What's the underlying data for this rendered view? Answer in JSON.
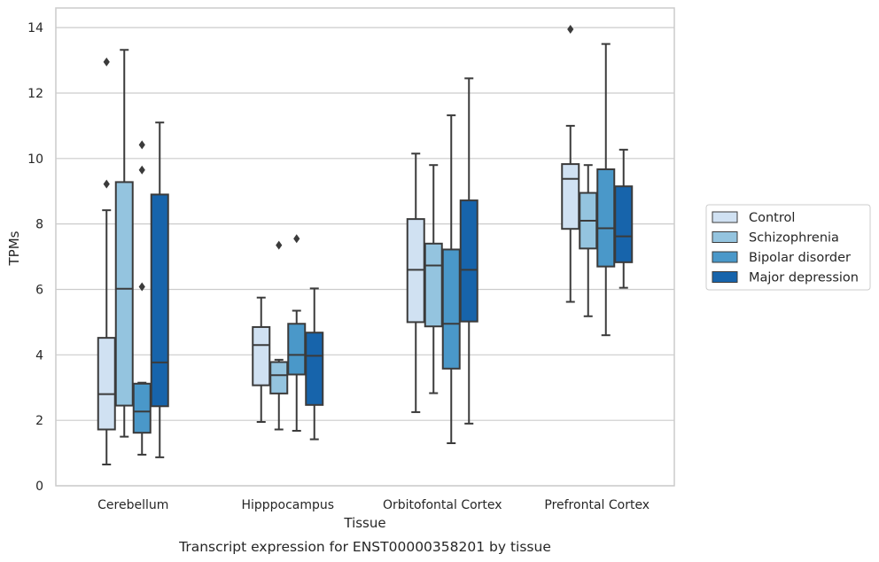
{
  "chart_data": {
    "type": "box",
    "title": "Transcript expression for ENST00000358201 by tissue",
    "xlabel": "Tissue",
    "ylabel": "TPMs",
    "ylim": [
      0,
      14.6
    ],
    "yticks": [
      0,
      2,
      4,
      6,
      8,
      10,
      12,
      14
    ],
    "ytick_labels": [
      "0",
      "2",
      "4",
      "6",
      "8",
      "10",
      "12",
      "14"
    ],
    "grid": "horizontal",
    "legend_position": "right",
    "categories": [
      "Cerebellum",
      "Hipppocampus",
      "Orbitofontal Cortex",
      "Prefrontal Cortex"
    ],
    "series": [
      {
        "name": "Control",
        "color": "#d0e1f2",
        "boxes": [
          {
            "whislo": 0.65,
            "q1": 1.72,
            "med": 2.8,
            "q3": 4.52,
            "whishi": 8.42,
            "fliers": [
              9.22,
              12.95
            ]
          },
          {
            "whislo": 1.95,
            "q1": 3.07,
            "med": 4.3,
            "q3": 4.85,
            "whishi": 5.75,
            "fliers": []
          },
          {
            "whislo": 2.25,
            "q1": 5.0,
            "med": 6.6,
            "q3": 8.15,
            "whishi": 10.15,
            "fliers": []
          },
          {
            "whislo": 5.62,
            "q1": 7.85,
            "med": 9.38,
            "q3": 9.83,
            "whishi": 11.0,
            "fliers": [
              13.95
            ]
          }
        ]
      },
      {
        "name": "Schizophrenia",
        "color": "#94c4df",
        "boxes": [
          {
            "whislo": 1.5,
            "q1": 2.45,
            "med": 6.02,
            "q3": 9.28,
            "whishi": 13.32,
            "fliers": []
          },
          {
            "whislo": 1.72,
            "q1": 2.82,
            "med": 3.38,
            "q3": 3.78,
            "whishi": 3.85,
            "fliers": [
              7.35
            ]
          },
          {
            "whislo": 2.83,
            "q1": 4.87,
            "med": 6.73,
            "q3": 7.4,
            "whishi": 9.8,
            "fliers": []
          },
          {
            "whislo": 5.18,
            "q1": 7.25,
            "med": 8.1,
            "q3": 8.95,
            "whishi": 9.8,
            "fliers": []
          }
        ]
      },
      {
        "name": "Bipolar disorder",
        "color": "#4a98c9",
        "boxes": [
          {
            "whislo": 0.95,
            "q1": 1.62,
            "med": 2.27,
            "q3": 3.12,
            "whishi": 3.15,
            "fliers": [
              6.08,
              9.65,
              10.42
            ]
          },
          {
            "whislo": 1.68,
            "q1": 3.4,
            "med": 4.0,
            "q3": 4.95,
            "whishi": 5.35,
            "fliers": [
              7.55
            ]
          },
          {
            "whislo": 1.3,
            "q1": 3.58,
            "med": 4.95,
            "q3": 7.22,
            "whishi": 11.32,
            "fliers": []
          },
          {
            "whislo": 4.6,
            "q1": 6.7,
            "med": 7.87,
            "q3": 9.67,
            "whishi": 13.5,
            "fliers": []
          }
        ]
      },
      {
        "name": "Major depression",
        "color": "#1764ab",
        "boxes": [
          {
            "whislo": 0.87,
            "q1": 2.43,
            "med": 3.77,
            "q3": 8.9,
            "whishi": 11.1,
            "fliers": []
          },
          {
            "whislo": 1.42,
            "q1": 2.47,
            "med": 3.97,
            "q3": 4.68,
            "whishi": 6.03,
            "fliers": []
          },
          {
            "whislo": 1.9,
            "q1": 5.02,
            "med": 6.6,
            "q3": 8.72,
            "whishi": 12.45,
            "fliers": []
          },
          {
            "whislo": 6.05,
            "q1": 6.83,
            "med": 7.62,
            "q3": 9.15,
            "whishi": 10.27,
            "fliers": []
          }
        ]
      }
    ]
  }
}
